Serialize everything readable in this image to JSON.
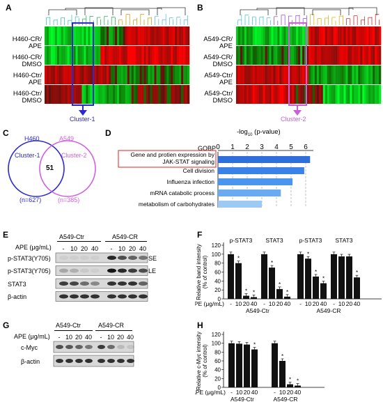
{
  "panels": {
    "A": {
      "label": "A",
      "rows": [
        "H460-CR/\nAPE",
        "H460-CR/\nDMSO",
        "H460-Ctr/\nAPE",
        "H460-Ctr/\nDMSO"
      ],
      "cluster_label": "Cluster-1",
      "cluster_color": "#2a2ad0"
    },
    "B": {
      "label": "B",
      "rows": [
        "A549-CR/\nAPE",
        "A549-CR/\nDMSO",
        "A549-Ctr/\nAPE",
        "A549-Ctr/\nDMSO"
      ],
      "cluster_label": "Cluster-2",
      "cluster_color": "#c860d8"
    },
    "C": {
      "label": "C",
      "left_title": "H460",
      "right_title": "A549",
      "left_set": "Cluster-1",
      "right_set": "Cluster-2",
      "overlap": "51",
      "left_n": "(n=627)",
      "right_n": "(n=385)",
      "left_color": "#2a2ad0",
      "right_color": "#d060e0"
    },
    "D": {
      "label": "D",
      "axis_title": "-log",
      "axis_sub": "10",
      "axis_tail": " (p-value)",
      "category_header": "GOBP",
      "ticks": [
        "0",
        "1",
        "2",
        "3",
        "4",
        "5",
        "6"
      ],
      "terms": [
        {
          "name": "Gene and protien expression by JAK-STAT signaling",
          "value": 6.3,
          "color": "#2f6fdc",
          "boxed": true
        },
        {
          "name": "Cell division",
          "value": 5.9,
          "color": "#3a82e8",
          "boxed": false
        },
        {
          "name": "Influenza infection",
          "value": 5.1,
          "color": "#4a96ee",
          "boxed": false
        },
        {
          "name": "mRNA catabolic process",
          "value": 4.3,
          "color": "#6aaaf0",
          "boxed": false
        },
        {
          "name": "metabolism of carbohydrates",
          "value": 3.0,
          "color": "#9ccaf5",
          "boxed": false
        }
      ],
      "box_color": "#e02020"
    },
    "E": {
      "label": "E",
      "group_left": "A549-Ctr",
      "group_right": "A549-CR",
      "dose_label": "APE (μg/mL)",
      "doses": [
        "-",
        "10",
        "20",
        "40",
        "-",
        "10",
        "20",
        "40"
      ],
      "blots": [
        "p-STAT3(Y705)",
        "p-STAT3(Y705)",
        "STAT3",
        "β-actin"
      ],
      "right_tags": [
        "SE",
        "LE"
      ]
    },
    "F": {
      "label": "F",
      "ylabel_lines": [
        "Relative band intensity",
        "(% of control)"
      ],
      "yticks": [
        "0",
        "20",
        "40",
        "60",
        "80",
        "100",
        "120"
      ],
      "group_titles": [
        "p-STAT3",
        "STAT3",
        "p-STAT3",
        "STAT3"
      ],
      "dose_label": "APE (μg/mL)",
      "doses": [
        "-",
        "10",
        "20",
        "40"
      ],
      "cell_labels": [
        "A549-Ctr",
        "A549-CR"
      ]
    },
    "G": {
      "label": "G",
      "group_left": "A549-Ctr",
      "group_right": "A549-CR",
      "dose_label": "APE (μg/mL)",
      "doses": [
        "-",
        "10",
        "20",
        "40",
        "-",
        "10",
        "20",
        "40"
      ],
      "blots": [
        "c-Myc",
        "β-actin"
      ]
    },
    "H": {
      "label": "H",
      "ylabel_lines": [
        "Relative c-Myc intensity",
        "(% of control)"
      ],
      "yticks": [
        "0",
        "20",
        "40",
        "60",
        "80",
        "100",
        "120"
      ],
      "dose_label": "APE (μg/mL)",
      "doses": [
        "-",
        "10",
        "20",
        "40"
      ],
      "cell_labels": [
        "A549-Ctr",
        "A549-CR"
      ]
    }
  },
  "chart_data": [
    {
      "type": "bar",
      "id": "D",
      "categories": [
        "Gene and protien expression by JAK-STAT signaling",
        "Cell division",
        "Influenza infection",
        "mRNA catabolic process",
        "metabolism of carbohydrates"
      ],
      "values": [
        6.3,
        5.9,
        5.1,
        4.3,
        3.0
      ],
      "xlim": [
        0,
        7
      ],
      "orientation": "horizontal"
    },
    {
      "type": "bar",
      "id": "F",
      "ylim": [
        0,
        120
      ],
      "groups": [
        {
          "title": "p-STAT3",
          "cell": "A549-Ctr",
          "values": [
            100,
            80,
            7,
            4
          ],
          "sig": [
            false,
            true,
            true,
            true
          ]
        },
        {
          "title": "STAT3",
          "cell": "A549-Ctr",
          "values": [
            100,
            70,
            22,
            5
          ],
          "sig": [
            false,
            true,
            true,
            true
          ]
        },
        {
          "title": "p-STAT3",
          "cell": "A549-CR",
          "values": [
            100,
            90,
            50,
            35
          ],
          "sig": [
            false,
            true,
            true,
            true
          ]
        },
        {
          "title": "STAT3",
          "cell": "A549-CR",
          "values": [
            100,
            95,
            95,
            48
          ],
          "sig": [
            false,
            false,
            false,
            true
          ]
        }
      ]
    },
    {
      "type": "bar",
      "id": "H",
      "ylim": [
        0,
        120
      ],
      "groups": [
        {
          "cell": "A549-Ctr",
          "values": [
            100,
            99,
            97,
            86
          ],
          "sig": [
            false,
            false,
            false,
            true
          ]
        },
        {
          "cell": "A549-CR",
          "values": [
            100,
            60,
            7,
            4
          ],
          "sig": [
            false,
            true,
            true,
            true
          ]
        }
      ]
    }
  ]
}
